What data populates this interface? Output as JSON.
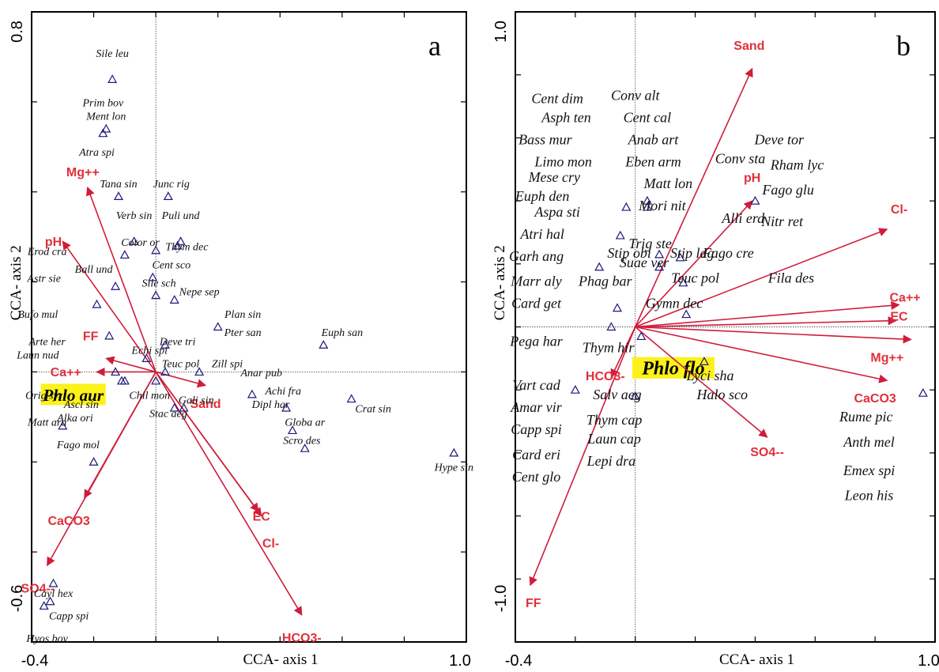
{
  "chart_data": [
    {
      "type": "scatter",
      "panel_label": "a",
      "xlabel": "CCA- axis 1",
      "ylabel": "CCA- axis 2",
      "xlim": [
        -0.4,
        1.0
      ],
      "ylim": [
        -0.6,
        0.8
      ],
      "x_tick_labels": [
        "-0.4",
        "1.0"
      ],
      "y_tick_labels": [
        "0.8",
        "-0.6"
      ],
      "focal_species": "Phlo aur",
      "env_vectors": [
        {
          "name": "Mg++",
          "x": -0.22,
          "y": 0.41,
          "lx": -0.235,
          "ly": 0.435
        },
        {
          "name": "pH",
          "x": -0.3,
          "y": 0.29,
          "lx": -0.33,
          "ly": 0.28
        },
        {
          "name": "FF",
          "x": -0.16,
          "y": 0.03,
          "lx": -0.21,
          "ly": 0.07
        },
        {
          "name": "Ca++",
          "x": -0.19,
          "y": 0.0,
          "lx": -0.29,
          "ly": -0.01
        },
        {
          "name": "CaCO3",
          "x": -0.23,
          "y": -0.28,
          "lx": -0.28,
          "ly": -0.34
        },
        {
          "name": "SO4--",
          "x": -0.35,
          "y": -0.43,
          "lx": -0.38,
          "ly": -0.49
        },
        {
          "name": "Sand",
          "x": 0.16,
          "y": -0.03,
          "lx": 0.16,
          "ly": -0.08
        },
        {
          "name": "EC",
          "x": 0.33,
          "y": -0.31,
          "lx": 0.34,
          "ly": -0.33
        },
        {
          "name": "Cl-",
          "x": 0.34,
          "y": -0.32,
          "lx": 0.37,
          "ly": -0.39
        },
        {
          "name": "HCO3-",
          "x": 0.47,
          "y": -0.54,
          "lx": 0.47,
          "ly": -0.6
        }
      ],
      "species": [
        {
          "name": "Sile leu",
          "x": -0.14,
          "y": 0.65,
          "lx": -0.14,
          "ly": 0.7
        },
        {
          "name": "Prim bov",
          "x": -0.14,
          "y": 0.65,
          "lx": -0.17,
          "ly": 0.59
        },
        {
          "name": "Ment lon",
          "x": -0.16,
          "y": 0.54,
          "lx": -0.16,
          "ly": 0.56
        },
        {
          "name": "Atra spi",
          "x": -0.17,
          "y": 0.53,
          "lx": -0.19,
          "ly": 0.48
        },
        {
          "name": "Tana sin",
          "x": -0.12,
          "y": 0.39,
          "lx": -0.12,
          "ly": 0.41
        },
        {
          "name": "Junc rig",
          "x": 0.04,
          "y": 0.39,
          "lx": 0.05,
          "ly": 0.41
        },
        {
          "name": "Verb sin",
          "x": -0.07,
          "y": 0.29,
          "lx": -0.07,
          "ly": 0.34
        },
        {
          "name": "Puli und",
          "x": 0.08,
          "y": 0.29,
          "lx": 0.08,
          "ly": 0.34
        },
        {
          "name": "Cotor or",
          "x": -0.0,
          "y": 0.27,
          "lx": -0.05,
          "ly": 0.28
        },
        {
          "name": "Thym dec",
          "x": 0.07,
          "y": 0.28,
          "lx": 0.1,
          "ly": 0.27
        },
        {
          "name": "Erod cra",
          "x": -0.1,
          "y": 0.26,
          "lx": -0.35,
          "ly": 0.26
        },
        {
          "name": "Ball und",
          "x": -0.13,
          "y": 0.19,
          "lx": -0.2,
          "ly": 0.22
        },
        {
          "name": "Cent sco",
          "x": -0.01,
          "y": 0.21,
          "lx": 0.05,
          "ly": 0.23
        },
        {
          "name": "Astr sie",
          "x": -0.13,
          "y": 0.19,
          "lx": -0.36,
          "ly": 0.2
        },
        {
          "name": "Sile sch",
          "x": 0.0,
          "y": 0.17,
          "lx": 0.01,
          "ly": 0.19
        },
        {
          "name": "Nepe sep",
          "x": 0.06,
          "y": 0.16,
          "lx": 0.14,
          "ly": 0.17
        },
        {
          "name": "Bufo mul",
          "x": -0.19,
          "y": 0.15,
          "lx": -0.38,
          "ly": 0.12
        },
        {
          "name": "Plan sin",
          "x": 0.2,
          "y": 0.1,
          "lx": 0.28,
          "ly": 0.12
        },
        {
          "name": "Pter san",
          "x": 0.2,
          "y": 0.1,
          "lx": 0.28,
          "ly": 0.08
        },
        {
          "name": "Euph san",
          "x": 0.54,
          "y": 0.06,
          "lx": 0.6,
          "ly": 0.08
        },
        {
          "name": "Deve tri",
          "x": 0.03,
          "y": 0.06,
          "lx": 0.07,
          "ly": 0.06
        },
        {
          "name": "Arte her",
          "x": -0.15,
          "y": 0.08,
          "lx": -0.35,
          "ly": 0.06
        },
        {
          "name": "Echi spi",
          "x": -0.03,
          "y": 0.03,
          "lx": -0.02,
          "ly": 0.04
        },
        {
          "name": "Laun nud",
          "x": -0.13,
          "y": 0.0,
          "lx": -0.38,
          "ly": 0.03
        },
        {
          "name": "Teuc pol",
          "x": 0.03,
          "y": 0.0,
          "lx": 0.08,
          "ly": 0.01
        },
        {
          "name": "Zill spi",
          "x": 0.14,
          "y": 0.0,
          "lx": 0.23,
          "ly": 0.01
        },
        {
          "name": "Anar pub",
          "x": 0.03,
          "y": 0.0,
          "lx": 0.34,
          "ly": -0.01
        },
        {
          "name": "Orig syr",
          "x": -0.11,
          "y": -0.02,
          "lx": -0.36,
          "ly": -0.06
        },
        {
          "name": "Achi fra",
          "x": 0.31,
          "y": -0.05,
          "lx": 0.41,
          "ly": -0.05
        },
        {
          "name": "Chil mon",
          "x": 0.0,
          "y": -0.02,
          "lx": -0.02,
          "ly": -0.06
        },
        {
          "name": "Gali sin",
          "x": 0.09,
          "y": -0.08,
          "lx": 0.13,
          "ly": -0.07
        },
        {
          "name": "Ascl sin",
          "x": -0.1,
          "y": -0.02,
          "lx": -0.24,
          "ly": -0.08
        },
        {
          "name": "Crat sin",
          "x": 0.63,
          "y": -0.06,
          "lx": 0.7,
          "ly": -0.09
        },
        {
          "name": "Dipl har",
          "x": 0.42,
          "y": -0.08,
          "lx": 0.37,
          "ly": -0.08
        },
        {
          "name": "Alka ori",
          "x": -0.1,
          "y": -0.02,
          "lx": -0.26,
          "ly": -0.11
        },
        {
          "name": "Stac aeg",
          "x": 0.06,
          "y": -0.08,
          "lx": 0.04,
          "ly": -0.1
        },
        {
          "name": "Matt ara",
          "x": -0.3,
          "y": -0.12,
          "lx": -0.35,
          "ly": -0.12
        },
        {
          "name": "Globa ar",
          "x": 0.44,
          "y": -0.13,
          "lx": 0.48,
          "ly": -0.12
        },
        {
          "name": "Fago mol",
          "x": -0.2,
          "y": -0.2,
          "lx": -0.25,
          "ly": -0.17
        },
        {
          "name": "Scro des",
          "x": 0.48,
          "y": -0.17,
          "lx": 0.47,
          "ly": -0.16
        },
        {
          "name": "Hype sin",
          "x": 0.96,
          "y": -0.18,
          "lx": 0.96,
          "ly": -0.22
        },
        {
          "name": "Cayl hex",
          "x": -0.33,
          "y": -0.47,
          "lx": -0.33,
          "ly": -0.5
        },
        {
          "name": "Capp spi",
          "x": -0.34,
          "y": -0.51,
          "lx": -0.28,
          "ly": -0.55
        },
        {
          "name": "Hyos bov",
          "x": -0.36,
          "y": -0.52,
          "lx": -0.35,
          "ly": -0.6
        }
      ]
    },
    {
      "type": "scatter",
      "panel_label": "b",
      "xlabel": "CCA- axis 1",
      "ylabel": "CCA- axis 2",
      "xlim": [
        -0.4,
        1.0
      ],
      "ylim": [
        -1.0,
        1.0
      ],
      "x_tick_labels": [
        "-0.4",
        "1.0"
      ],
      "y_tick_labels": [
        "1.0",
        "-1.0"
      ],
      "focal_species": "Phlo flo",
      "env_vectors": [
        {
          "name": "Sand",
          "x": 0.39,
          "y": 0.82,
          "lx": 0.38,
          "ly": 0.88
        },
        {
          "name": "pH",
          "x": 0.39,
          "y": 0.4,
          "lx": 0.39,
          "ly": 0.46
        },
        {
          "name": "Cl-",
          "x": 0.84,
          "y": 0.31,
          "lx": 0.88,
          "ly": 0.36
        },
        {
          "name": "Ca++",
          "x": 0.88,
          "y": 0.07,
          "lx": 0.9,
          "ly": 0.08
        },
        {
          "name": "EC",
          "x": 0.87,
          "y": 0.02,
          "lx": 0.88,
          "ly": 0.02
        },
        {
          "name": "Mg++",
          "x": 0.92,
          "y": -0.04,
          "lx": 0.84,
          "ly": -0.11
        },
        {
          "name": "CaCO3",
          "x": 0.84,
          "y": -0.17,
          "lx": 0.8,
          "ly": -0.24
        },
        {
          "name": "SO4--",
          "x": 0.44,
          "y": -0.35,
          "lx": 0.44,
          "ly": -0.41
        },
        {
          "name": "HCO3-",
          "x": -0.08,
          "y": -0.16,
          "lx": -0.1,
          "ly": -0.17
        },
        {
          "name": "FF",
          "x": -0.35,
          "y": -0.82,
          "lx": -0.34,
          "ly": -0.89
        }
      ],
      "species": [
        {
          "name": "Cent dim",
          "x": -0.03,
          "y": 0.38,
          "lx": -0.26,
          "ly": 0.71
        },
        {
          "name": "Conv alt",
          "x": 0.04,
          "y": 0.4,
          "lx": 0.0,
          "ly": 0.72
        },
        {
          "name": "Asph ten",
          "x": 0.04,
          "y": 0.4,
          "lx": -0.23,
          "ly": 0.65
        },
        {
          "name": "Cent cal",
          "x": 0.04,
          "y": 0.4,
          "lx": 0.04,
          "ly": 0.65
        },
        {
          "name": "Bass mur",
          "x": -0.03,
          "y": 0.38,
          "lx": -0.3,
          "ly": 0.58
        },
        {
          "name": "Anab art",
          "x": 0.04,
          "y": 0.38,
          "lx": 0.06,
          "ly": 0.58
        },
        {
          "name": "Deve tor",
          "x": 0.4,
          "y": 0.4,
          "lx": 0.48,
          "ly": 0.58
        },
        {
          "name": "Limo mon",
          "x": -0.03,
          "y": 0.38,
          "lx": -0.24,
          "ly": 0.51
        },
        {
          "name": "Eben arm",
          "x": 0.04,
          "y": 0.38,
          "lx": 0.06,
          "ly": 0.51
        },
        {
          "name": "Conv sta",
          "x": 0.4,
          "y": 0.4,
          "lx": 0.35,
          "ly": 0.52
        },
        {
          "name": "Rham lyc",
          "x": 0.4,
          "y": 0.4,
          "lx": 0.54,
          "ly": 0.5
        },
        {
          "name": "Mese cry",
          "x": -0.03,
          "y": 0.38,
          "lx": -0.27,
          "ly": 0.46
        },
        {
          "name": "Matt lon",
          "x": 0.04,
          "y": 0.38,
          "lx": 0.11,
          "ly": 0.44
        },
        {
          "name": "Euph den",
          "x": -0.03,
          "y": 0.38,
          "lx": -0.31,
          "ly": 0.4
        },
        {
          "name": "Fago glu",
          "x": 0.4,
          "y": 0.4,
          "lx": 0.51,
          "ly": 0.42
        },
        {
          "name": "Aspa sti",
          "x": -0.05,
          "y": 0.29,
          "lx": -0.26,
          "ly": 0.35
        },
        {
          "name": "Mori nit",
          "x": 0.04,
          "y": 0.38,
          "lx": 0.09,
          "ly": 0.37
        },
        {
          "name": "Alli erd",
          "x": 0.4,
          "y": 0.4,
          "lx": 0.36,
          "ly": 0.33
        },
        {
          "name": "Nitr ret",
          "x": 0.4,
          "y": 0.4,
          "lx": 0.49,
          "ly": 0.32
        },
        {
          "name": "Atri hal",
          "x": -0.05,
          "y": 0.29,
          "lx": -0.31,
          "ly": 0.28
        },
        {
          "name": "Trig ste",
          "x": 0.08,
          "y": 0.23,
          "lx": 0.05,
          "ly": 0.25
        },
        {
          "name": "Stip obi",
          "x": 0.08,
          "y": 0.23,
          "lx": -0.02,
          "ly": 0.22
        },
        {
          "name": "Stip lag",
          "x": 0.15,
          "y": 0.22,
          "lx": 0.19,
          "ly": 0.22
        },
        {
          "name": "Fago cre",
          "x": 0.4,
          "y": 0.4,
          "lx": 0.31,
          "ly": 0.22
        },
        {
          "name": "Garh ang",
          "x": -0.12,
          "y": 0.19,
          "lx": -0.33,
          "ly": 0.21
        },
        {
          "name": "Suae ver",
          "x": 0.08,
          "y": 0.19,
          "lx": 0.03,
          "ly": 0.19
        },
        {
          "name": "Marr aly",
          "x": -0.06,
          "y": 0.06,
          "lx": -0.33,
          "ly": 0.13
        },
        {
          "name": "Phag bar",
          "x": -0.06,
          "y": 0.06,
          "lx": -0.1,
          "ly": 0.13
        },
        {
          "name": "Teuc pol",
          "x": 0.16,
          "y": 0.14,
          "lx": 0.2,
          "ly": 0.14
        },
        {
          "name": "Fila des",
          "x": 0.4,
          "y": 0.4,
          "lx": 0.52,
          "ly": 0.14
        },
        {
          "name": "Card get",
          "x": -0.06,
          "y": 0.06,
          "lx": -0.33,
          "ly": 0.06
        },
        {
          "name": "Gymn dec",
          "x": 0.17,
          "y": 0.04,
          "lx": 0.13,
          "ly": 0.06
        },
        {
          "name": "Pega har",
          "x": -0.08,
          "y": 0.0,
          "lx": -0.33,
          "ly": -0.06
        },
        {
          "name": "Thym hir",
          "x": 0.02,
          "y": -0.03,
          "lx": -0.09,
          "ly": -0.08
        },
        {
          "name": "Lyci sha",
          "x": 0.23,
          "y": -0.11,
          "lx": 0.25,
          "ly": -0.17
        },
        {
          "name": "Vart cad",
          "x": -0.2,
          "y": -0.2,
          "lx": -0.33,
          "ly": -0.2
        },
        {
          "name": "Halo sco",
          "x": 0.23,
          "y": -0.11,
          "lx": 0.29,
          "ly": -0.23
        },
        {
          "name": "Amar vir",
          "x": -0.2,
          "y": -0.2,
          "lx": -0.33,
          "ly": -0.27
        },
        {
          "name": "Salv aeg",
          "x": 0.0,
          "y": -0.22,
          "lx": -0.06,
          "ly": -0.23
        },
        {
          "name": "Rume pic",
          "x": 0.96,
          "y": -0.21,
          "lx": 0.77,
          "ly": -0.3
        },
        {
          "name": "Thym cap",
          "x": 0.0,
          "y": -0.22,
          "lx": -0.07,
          "ly": -0.31
        },
        {
          "name": "Capp spi",
          "x": -0.2,
          "y": -0.2,
          "lx": -0.33,
          "ly": -0.34
        },
        {
          "name": "Laun cap",
          "x": 0.0,
          "y": -0.22,
          "lx": -0.07,
          "ly": -0.37
        },
        {
          "name": "Anth mel",
          "x": 0.96,
          "y": -0.21,
          "lx": 0.78,
          "ly": -0.38
        },
        {
          "name": "Card eri",
          "x": -0.2,
          "y": -0.2,
          "lx": -0.33,
          "ly": -0.42
        },
        {
          "name": "Lepi dra",
          "x": 0.0,
          "y": -0.22,
          "lx": -0.08,
          "ly": -0.44
        },
        {
          "name": "Emex spi",
          "x": 0.96,
          "y": -0.21,
          "lx": 0.78,
          "ly": -0.47
        },
        {
          "name": "Cent glo",
          "x": -0.2,
          "y": -0.2,
          "lx": -0.33,
          "ly": -0.49
        },
        {
          "name": "Leon his",
          "x": 0.96,
          "y": -0.21,
          "lx": 0.78,
          "ly": -0.55
        }
      ]
    }
  ]
}
